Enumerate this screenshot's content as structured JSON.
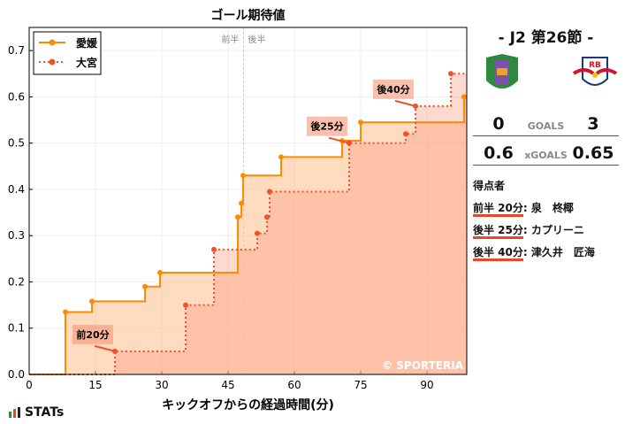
{
  "chart_data": {
    "type": "line",
    "title": "ゴール期待値",
    "xlabel": "キックオフからの経過時間(分)",
    "ylabel": "",
    "xlim": [
      0,
      99
    ],
    "ylim": [
      0,
      0.75
    ],
    "xticks": [
      0,
      15,
      30,
      45,
      60,
      75,
      90
    ],
    "yticks": [
      0.0,
      0.1,
      0.2,
      0.3,
      0.4,
      0.5,
      0.6,
      0.7
    ],
    "grid": true,
    "legend": "top-left",
    "step": true,
    "halftime_labels": [
      "前半",
      "後半"
    ],
    "halftime_x": 48.5,
    "watermark": "© SPORTERIA",
    "series": [
      {
        "name": "愛媛",
        "color": "#ff8c00",
        "style": "solid",
        "x": [
          8.2,
          14.2,
          26.2,
          29.6,
          47.2,
          48,
          48.4,
          57,
          70.8,
          75,
          98.4
        ],
        "y": [
          0.135,
          0.158,
          0.19,
          0.22,
          0.34,
          0.37,
          0.43,
          0.47,
          0.505,
          0.545,
          0.6
        ]
      },
      {
        "name": "大宮",
        "color": "#f0502a",
        "style": "dotted",
        "x": [
          19.4,
          35.4,
          41.8,
          51.6,
          53.8,
          54.4,
          72.4,
          85.2,
          87.4,
          95.4
        ],
        "y": [
          0.05,
          0.15,
          0.27,
          0.305,
          0.34,
          0.395,
          0.5,
          0.52,
          0.58,
          0.65
        ]
      }
    ],
    "annotations": [
      {
        "text": "前20分",
        "x": 19.4,
        "y": 0.05
      },
      {
        "text": "後25分",
        "x": 72.4,
        "y": 0.5
      },
      {
        "text": "後40分",
        "x": 87.4,
        "y": 0.58
      }
    ]
  },
  "side": {
    "round": "- J2 第26節 -",
    "home_goals": "0",
    "away_goals": "3",
    "goals_label": "GOALS",
    "home_xg": "0.6",
    "away_xg": "0.65",
    "xg_label": "xGOALS",
    "away_badge": "RB",
    "scorers_title": "得点者",
    "scorers": [
      {
        "time": "前半 20分",
        "name": "泉　柊椰"
      },
      {
        "time": "後半 25分",
        "name": "カプリーニ"
      },
      {
        "time": "後半 40分",
        "name": "津久井　匠海"
      }
    ]
  },
  "brand": "STATs"
}
